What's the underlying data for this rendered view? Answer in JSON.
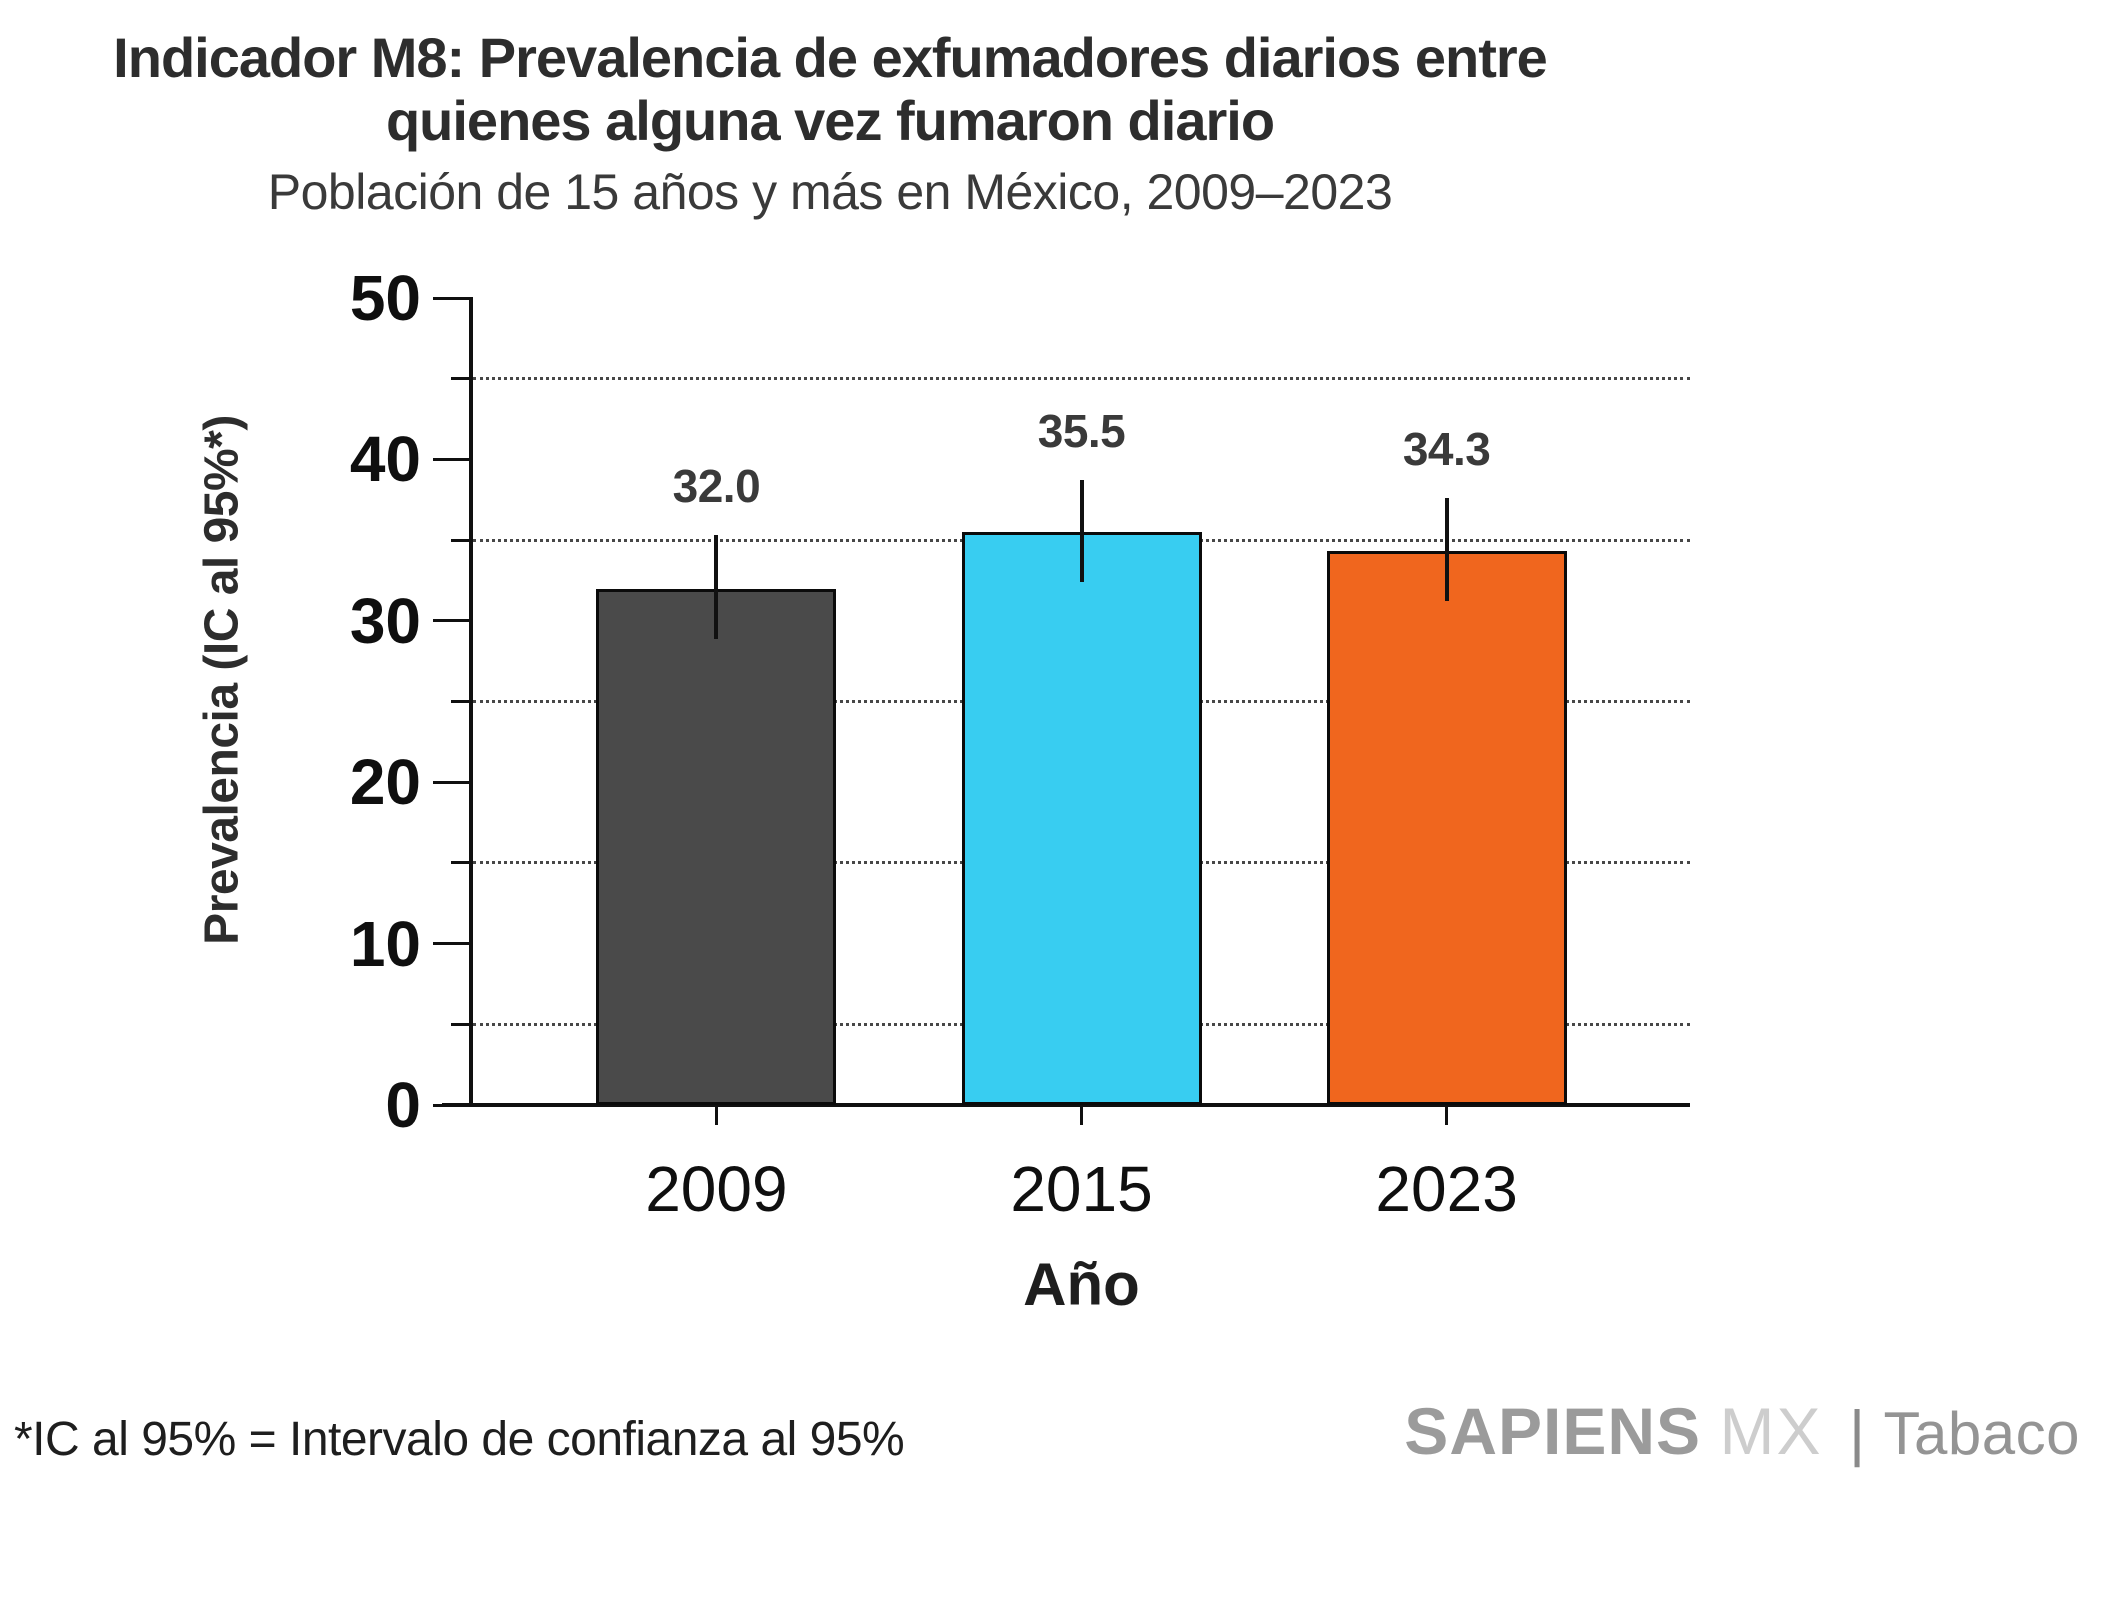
{
  "header": {
    "title_line1": "Indicador M8: Prevalencia de exfumadores diarios entre",
    "title_line2": "quienes alguna vez fumaron diario",
    "subtitle": "Población de 15 años y más en México, 2009–2023"
  },
  "chart_data": {
    "type": "bar",
    "title": "Indicador M8: Prevalencia de exfumadores diarios entre quienes alguna vez fumaron diario",
    "subtitle": "Población de 15 años y más en México, 2009–2023",
    "categories": [
      "2009",
      "2015",
      "2023"
    ],
    "values": [
      32.0,
      35.5,
      34.3
    ],
    "value_labels": [
      "32.0",
      "35.5",
      "34.3"
    ],
    "error_low": [
      28.9,
      32.4,
      31.2
    ],
    "error_high": [
      35.3,
      38.7,
      37.6
    ],
    "bar_colors": [
      "#4A4A4A",
      "#38CDF1",
      "#F0661E"
    ],
    "xlabel": "Año",
    "ylabel": "Prevalencia (IC al 95%*)",
    "ylim": [
      0,
      50
    ],
    "yticks_major": [
      0,
      10,
      20,
      30,
      40,
      50
    ],
    "yticks_minor_gridlines": [
      5,
      15,
      25,
      35,
      45
    ],
    "grid": "horizontal dotted lines at minor ticks only",
    "legend_position": "none",
    "error_bar_style": "vertical line, no caps"
  },
  "footer": {
    "footnote": "*IC al 95% = Intervalo de confianza al 95%",
    "logo": {
      "brand": "SAPIENS",
      "region": "MX",
      "separator": "|",
      "division": "Tabaco"
    }
  },
  "colors": {
    "background": "#FFFFFF",
    "title_text": "#2D2D2D",
    "axis_text": "#0F0F0F",
    "bar_2009": "#4A4A4A",
    "bar_2015": "#38CDF1",
    "bar_2023": "#F0661E",
    "bar_border": "#0B0B0B",
    "gridline": "#474747",
    "logo_gray": "#9B9B9B",
    "logo_light_gray": "#CDCDCD"
  }
}
